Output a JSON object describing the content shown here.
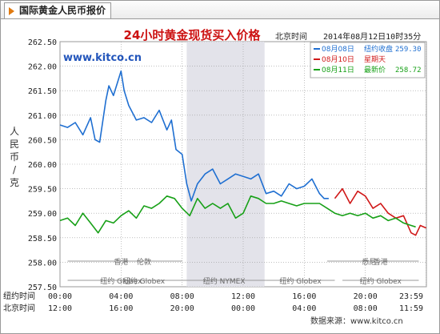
{
  "window": {
    "tab_title": "国际黄金人民币报价"
  },
  "colors": {
    "blue": "#1f6fd1",
    "red": "#d01818",
    "green": "#17a017",
    "shade": "#e3e3ea",
    "grid": "#9a9a9a",
    "title": "#cc1111"
  },
  "chart_data": {
    "type": "line",
    "title": "24小时黄金现货买入价格",
    "watermark": "www.kitco.cn",
    "timestamp_label": "北京时间",
    "timestamp": "2014年08月12日10时35分",
    "ylabel": "人民币/克",
    "ylim": [
      257.5,
      262.5
    ],
    "yticks": [
      "262.50",
      "262.00",
      "261.50",
      "261.00",
      "260.50",
      "260.00",
      "259.50",
      "259.00",
      "258.50",
      "258.00",
      "257.50"
    ],
    "x_row1_label": "纽约时间",
    "x_row1_ticks": [
      "00:00",
      "04:00",
      "08:00",
      "12:00",
      "16:00",
      "20:00",
      "23:59"
    ],
    "x_row2_label": "北京时间",
    "x_row2_ticks": [
      "12:00",
      "16:00",
      "20:00",
      "00:00",
      "04:00",
      "08:00",
      "11:59"
    ],
    "x_hours_ny": [
      0,
      4,
      8,
      12,
      16,
      20,
      23.98
    ],
    "session_labels": [
      {
        "top": "香港",
        "bottom": "纽约 Globex",
        "start_ny": 0.5,
        "end_ny": 7.5
      },
      {
        "top": "伦敦",
        "bottom": "纽约 Globex",
        "start_ny": 3,
        "end_ny": 8
      },
      {
        "top": "",
        "bottom": "纽约 NYMEX",
        "start_ny": 8,
        "end_ny": 13.5
      },
      {
        "top": "",
        "bottom": "纽约 Globex",
        "start_ny": 13.5,
        "end_ny": 18
      },
      {
        "top": "香港",
        "bottom": "纽约 Globex",
        "start_ny": 18.5,
        "end_ny": 23.5
      },
      {
        "top": "悉尼",
        "bottom": "",
        "start_ny": 17.5,
        "end_ny": 23
      }
    ],
    "shaded_region_ny": [
      8.3,
      13.4
    ],
    "legend": [
      {
        "date": "08月08日",
        "label": "纽约收盘",
        "value": "259.30",
        "color": "#1f6fd1"
      },
      {
        "date": "08月10日",
        "label": "星期天",
        "value": "",
        "color": "#d01818"
      },
      {
        "date": "08月11日",
        "label": "最新价",
        "value": "258.72",
        "color": "#17a017"
      }
    ],
    "series": [
      {
        "name": "08月08日",
        "color": "#1f6fd1",
        "points": [
          [
            0,
            260.8
          ],
          [
            0.5,
            260.75
          ],
          [
            1,
            260.85
          ],
          [
            1.5,
            260.6
          ],
          [
            2,
            260.95
          ],
          [
            2.3,
            260.5
          ],
          [
            2.6,
            260.45
          ],
          [
            3,
            261.3
          ],
          [
            3.2,
            261.6
          ],
          [
            3.5,
            261.4
          ],
          [
            3.8,
            261.7
          ],
          [
            4,
            261.9
          ],
          [
            4.2,
            261.5
          ],
          [
            4.5,
            261.2
          ],
          [
            5,
            260.9
          ],
          [
            5.5,
            260.95
          ],
          [
            6,
            260.85
          ],
          [
            6.5,
            261.1
          ],
          [
            7,
            260.7
          ],
          [
            7.3,
            260.9
          ],
          [
            7.6,
            260.3
          ],
          [
            8,
            260.2
          ],
          [
            8.3,
            259.6
          ],
          [
            8.6,
            259.25
          ],
          [
            9,
            259.6
          ],
          [
            9.5,
            259.8
          ],
          [
            10,
            259.9
          ],
          [
            10.5,
            259.6
          ],
          [
            11,
            259.7
          ],
          [
            11.5,
            259.8
          ],
          [
            12,
            259.75
          ],
          [
            12.5,
            259.7
          ],
          [
            13,
            259.8
          ],
          [
            13.5,
            259.4
          ],
          [
            14,
            259.45
          ],
          [
            14.5,
            259.35
          ],
          [
            15,
            259.6
          ],
          [
            15.5,
            259.5
          ],
          [
            16,
            259.55
          ],
          [
            16.5,
            259.7
          ],
          [
            17,
            259.4
          ],
          [
            17.3,
            259.3
          ],
          [
            17.6,
            259.3
          ]
        ]
      },
      {
        "name": "08月10日",
        "color": "#d01818",
        "points": [
          [
            18,
            259.3
          ],
          [
            18.5,
            259.5
          ],
          [
            19,
            259.2
          ],
          [
            19.5,
            259.45
          ],
          [
            20,
            259.35
          ],
          [
            20.5,
            259.1
          ],
          [
            21,
            259.2
          ],
          [
            21.5,
            259.0
          ],
          [
            22,
            258.9
          ],
          [
            22.5,
            258.95
          ],
          [
            23,
            258.6
          ],
          [
            23.3,
            258.55
          ],
          [
            23.6,
            258.75
          ],
          [
            23.98,
            258.7
          ]
        ]
      },
      {
        "name": "08月11日",
        "color": "#17a017",
        "points": [
          [
            0,
            258.85
          ],
          [
            0.5,
            258.9
          ],
          [
            1,
            258.75
          ],
          [
            1.5,
            259.0
          ],
          [
            2,
            258.8
          ],
          [
            2.5,
            258.6
          ],
          [
            3,
            258.85
          ],
          [
            3.5,
            258.8
          ],
          [
            4,
            258.95
          ],
          [
            4.5,
            259.05
          ],
          [
            5,
            258.9
          ],
          [
            5.5,
            259.15
          ],
          [
            6,
            259.1
          ],
          [
            6.5,
            259.2
          ],
          [
            7,
            259.35
          ],
          [
            7.5,
            259.3
          ],
          [
            8,
            259.1
          ],
          [
            8.5,
            258.95
          ],
          [
            9,
            259.3
          ],
          [
            9.5,
            259.1
          ],
          [
            10,
            259.2
          ],
          [
            10.5,
            259.1
          ],
          [
            11,
            259.2
          ],
          [
            11.5,
            258.9
          ],
          [
            12,
            259.0
          ],
          [
            12.5,
            259.35
          ],
          [
            13,
            259.3
          ],
          [
            13.5,
            259.2
          ],
          [
            14,
            259.2
          ],
          [
            14.5,
            259.25
          ],
          [
            15,
            259.2
          ],
          [
            15.5,
            259.15
          ],
          [
            16,
            259.2
          ],
          [
            16.5,
            259.2
          ],
          [
            17,
            259.2
          ],
          [
            17.5,
            259.1
          ],
          [
            18,
            259.0
          ],
          [
            18.5,
            258.95
          ],
          [
            19,
            259.0
          ],
          [
            19.5,
            258.95
          ],
          [
            20,
            259.0
          ],
          [
            20.5,
            258.9
          ],
          [
            21,
            258.95
          ],
          [
            21.5,
            258.85
          ],
          [
            22,
            258.9
          ],
          [
            22.5,
            258.8
          ],
          [
            23,
            258.75
          ],
          [
            23.3,
            258.72
          ]
        ]
      }
    ],
    "footer_source": "数据来源：www.kitco.cn"
  }
}
